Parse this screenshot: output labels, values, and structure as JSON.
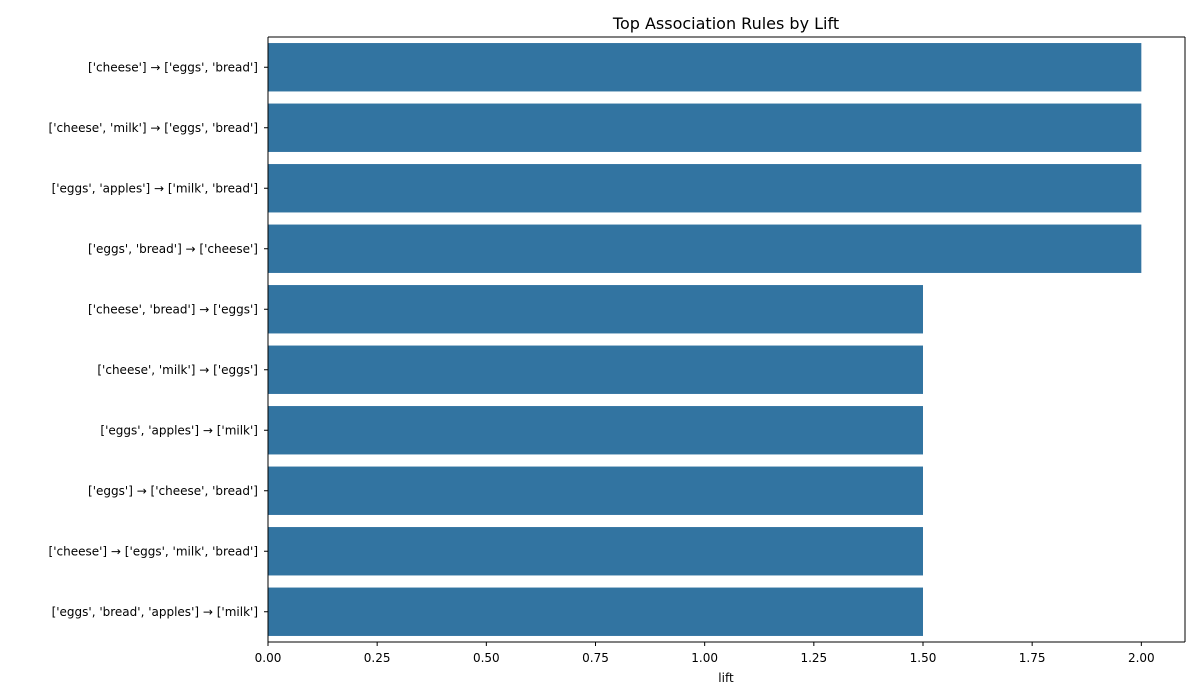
{
  "chart_data": {
    "type": "bar",
    "orientation": "horizontal",
    "title": "Top Association Rules by Lift",
    "xlabel": "lift",
    "ylabel": "",
    "xlim": [
      0,
      2.1
    ],
    "xticks": [
      "0.00",
      "0.25",
      "0.50",
      "0.75",
      "1.00",
      "1.25",
      "1.50",
      "1.75",
      "2.00"
    ],
    "grid": false,
    "color": "#3274a1",
    "categories": [
      "['cheese'] → ['eggs', 'bread']",
      "['cheese', 'milk'] → ['eggs', 'bread']",
      "['eggs', 'apples'] → ['milk', 'bread']",
      "['eggs', 'bread'] → ['cheese']",
      "['cheese', 'bread'] → ['eggs']",
      "['cheese', 'milk'] → ['eggs']",
      "['eggs', 'apples'] → ['milk']",
      "['eggs'] → ['cheese', 'bread']",
      "['cheese'] → ['eggs', 'milk', 'bread']",
      "['eggs', 'bread', 'apples'] → ['milk']"
    ],
    "values": [
      2.0,
      2.0,
      2.0,
      2.0,
      1.5,
      1.5,
      1.5,
      1.5,
      1.5,
      1.5
    ]
  }
}
